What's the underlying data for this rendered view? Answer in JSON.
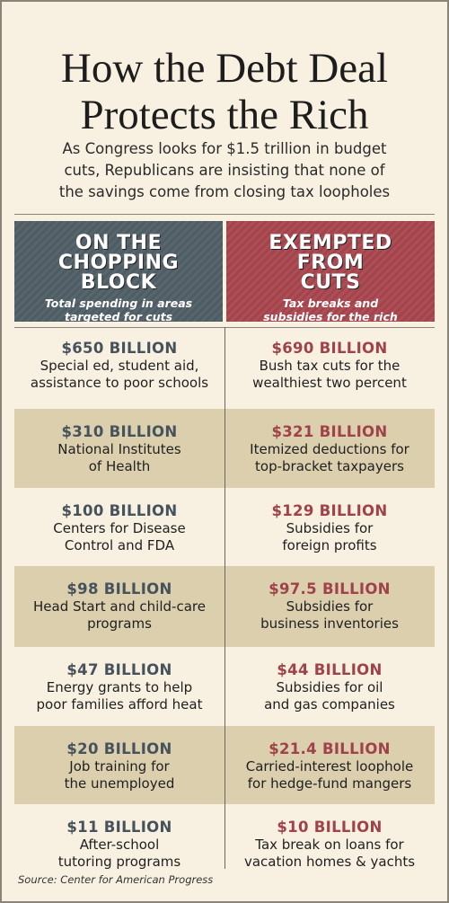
{
  "header": {
    "title_lines": [
      "How the Debt Deal",
      "Protects the Rich"
    ],
    "subtitle_lines": [
      "As Congress looks for $1.5 trillion in budget",
      "cuts, Republicans are insisting that none of",
      "the savings come from closing tax loopholes"
    ]
  },
  "columns": [
    {
      "heading_lines": [
        "ON THE",
        "CHOPPING",
        "BLOCK"
      ],
      "note_lines": [
        "Total spending in areas",
        "targeted for cuts"
      ]
    },
    {
      "heading_lines": [
        "EXEMPTED",
        "FROM",
        "CUTS"
      ],
      "note_lines": [
        "Tax breaks and",
        "subsidies for the rich"
      ]
    }
  ],
  "rows": [
    {
      "left": {
        "amount": "$650 BILLION",
        "lines": [
          "Special ed, student aid,",
          "assistance to poor schools"
        ]
      },
      "right": {
        "amount": "$690 BILLION",
        "lines": [
          "Bush tax cuts for the",
          "wealthiest two percent"
        ]
      }
    },
    {
      "left": {
        "amount": "$310 BILLION",
        "lines": [
          "National Institutes",
          "of Health"
        ]
      },
      "right": {
        "amount": "$321 BILLION",
        "lines": [
          "Itemized deductions for",
          "top-bracket taxpayers"
        ]
      }
    },
    {
      "left": {
        "amount": "$100 BILLION",
        "lines": [
          "Centers for Disease",
          "Control and FDA"
        ]
      },
      "right": {
        "amount": "$129 BILLION",
        "lines": [
          "Subsidies for",
          "foreign profits"
        ]
      }
    },
    {
      "left": {
        "amount": "$98 BILLION",
        "lines": [
          "Head Start and child-care",
          "programs"
        ]
      },
      "right": {
        "amount": "$97.5 BILLION",
        "lines": [
          "Subsidies for",
          "business inventories"
        ]
      }
    },
    {
      "left": {
        "amount": "$47 BILLION",
        "lines": [
          "Energy grants to help",
          "poor families afford heat"
        ]
      },
      "right": {
        "amount": "$44 BILLION",
        "lines": [
          "Subsidies for oil",
          "and gas companies"
        ]
      }
    },
    {
      "left": {
        "amount": "$20 BILLION",
        "lines": [
          "Job training for",
          "the unemployed"
        ]
      },
      "right": {
        "amount": "$21.4 BILLION",
        "lines": [
          "Carried-interest loophole",
          "for hedge-fund mangers"
        ]
      }
    },
    {
      "left": {
        "amount": "$11 BILLION",
        "lines": [
          "After-school",
          "tutoring programs"
        ]
      },
      "right": {
        "amount": "$10 BILLION",
        "lines": [
          "Tax break on loans for",
          "vacation homes & yachts"
        ]
      }
    }
  ],
  "source": "Source: Center for American Progress"
}
